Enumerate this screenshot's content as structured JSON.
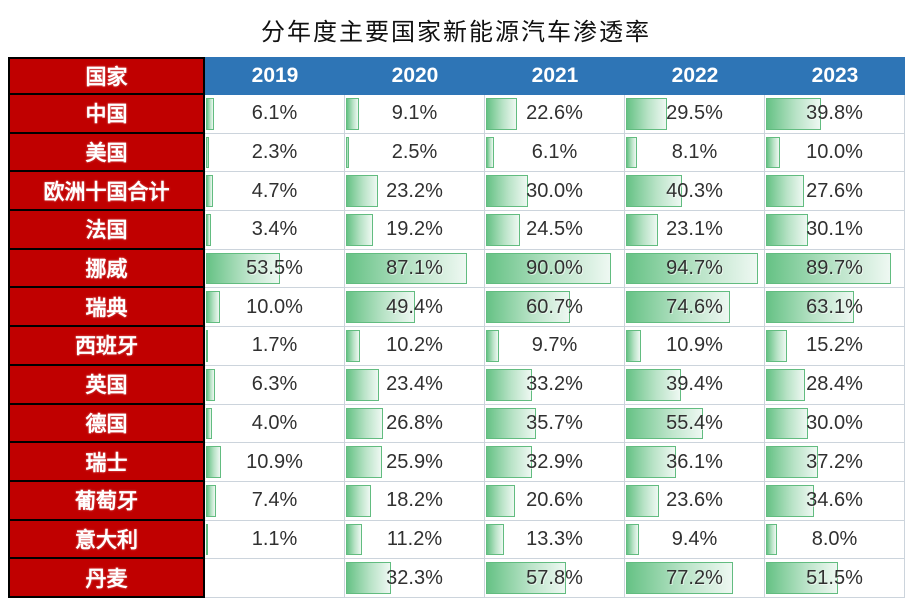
{
  "title": "分年度主要国家新能源汽车渗透率",
  "table": {
    "country_header": "国家",
    "year_headers": [
      "2019",
      "2020",
      "2021",
      "2022",
      "2023"
    ]
  },
  "colors": {
    "country_header_bg": "#c00000",
    "year_header_bg": "#2e75b6",
    "country_border": "#000000",
    "bar_border": "#62bc80",
    "bar_fill_start": "#66c285",
    "bar_fill_end": "#eef8f2",
    "grid_line": "#ccd4dc",
    "value_text": "#303030",
    "header_text": "#ffffff"
  },
  "chart_data": {
    "type": "table",
    "title": "分年度主要国家新能源汽车渗透率",
    "categories": [
      "2019",
      "2020",
      "2021",
      "2022",
      "2023"
    ],
    "unit": "%",
    "bar_scale_max": 100,
    "series": [
      {
        "name": "中国",
        "values": [
          6.1,
          9.1,
          22.6,
          29.5,
          39.8
        ]
      },
      {
        "name": "美国",
        "values": [
          2.3,
          2.5,
          6.1,
          8.1,
          10.0
        ]
      },
      {
        "name": "欧洲十国合计",
        "values": [
          4.7,
          23.2,
          30.0,
          40.3,
          27.6
        ]
      },
      {
        "name": "法国",
        "values": [
          3.4,
          19.2,
          24.5,
          23.1,
          30.1
        ]
      },
      {
        "name": "挪威",
        "values": [
          53.5,
          87.1,
          90.0,
          94.7,
          89.7
        ]
      },
      {
        "name": "瑞典",
        "values": [
          10.0,
          49.4,
          60.7,
          74.6,
          63.1
        ]
      },
      {
        "name": "西班牙",
        "values": [
          1.7,
          10.2,
          9.7,
          10.9,
          15.2
        ]
      },
      {
        "name": "英国",
        "values": [
          6.3,
          23.4,
          33.2,
          39.4,
          28.4
        ]
      },
      {
        "name": "德国",
        "values": [
          4.0,
          26.8,
          35.7,
          55.4,
          30.0
        ]
      },
      {
        "name": "瑞士",
        "values": [
          10.9,
          25.9,
          32.9,
          36.1,
          37.2
        ]
      },
      {
        "name": "葡萄牙",
        "values": [
          7.4,
          18.2,
          20.6,
          23.6,
          34.6
        ]
      },
      {
        "name": "意大利",
        "values": [
          1.1,
          11.2,
          13.3,
          9.4,
          8.0
        ]
      },
      {
        "name": "丹麦",
        "values": [
          null,
          32.3,
          57.8,
          77.2,
          51.5
        ]
      }
    ]
  }
}
